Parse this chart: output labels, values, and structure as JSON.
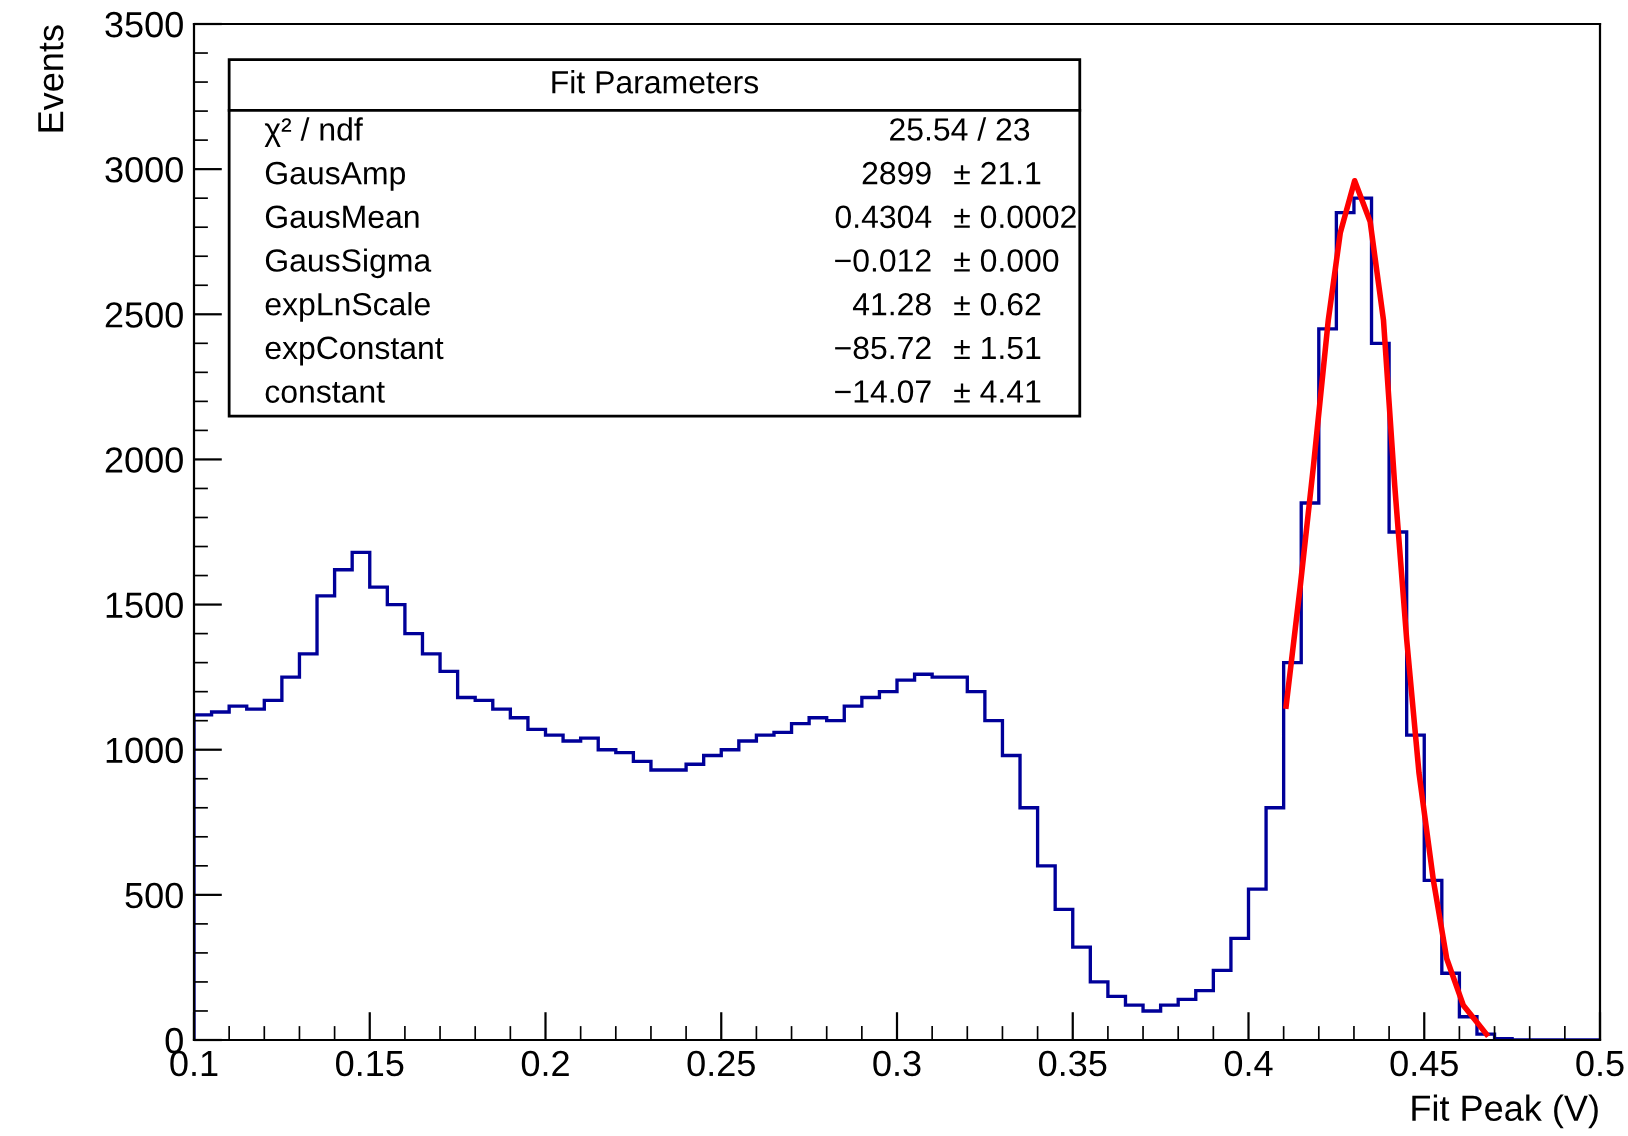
{
  "chart_data": {
    "type": "histogram",
    "xlabel": "Fit Peak (V)",
    "ylabel": "Events",
    "xlim": [
      0.1,
      0.5
    ],
    "ylim": [
      0,
      3500
    ],
    "xticks": [
      {
        "value": 0.1,
        "label": "0.1"
      },
      {
        "value": 0.15,
        "label": "0.15"
      },
      {
        "value": 0.2,
        "label": "0.2"
      },
      {
        "value": 0.25,
        "label": "0.25"
      },
      {
        "value": 0.3,
        "label": "0.3"
      },
      {
        "value": 0.35,
        "label": "0.35"
      },
      {
        "value": 0.4,
        "label": "0.4"
      },
      {
        "value": 0.45,
        "label": "0.45"
      },
      {
        "value": 0.5,
        "label": "0.5"
      }
    ],
    "yticks": [
      0,
      500,
      1000,
      1500,
      2000,
      2500,
      3000,
      3500
    ],
    "grid": false,
    "legend": false,
    "series": [
      {
        "color": "#000099",
        "bins": [
          0.1,
          0.105,
          0.11,
          0.115,
          0.12,
          0.125,
          0.13,
          0.135,
          0.14,
          0.145,
          0.15,
          0.155,
          0.16,
          0.165,
          0.17,
          0.175,
          0.18,
          0.185,
          0.19,
          0.195,
          0.2,
          0.205,
          0.21,
          0.215,
          0.22,
          0.225,
          0.23,
          0.235,
          0.24,
          0.245,
          0.25,
          0.255,
          0.26,
          0.265,
          0.27,
          0.275,
          0.28,
          0.285,
          0.29,
          0.295,
          0.3,
          0.305,
          0.31,
          0.315,
          0.32,
          0.325,
          0.33,
          0.335,
          0.34,
          0.345,
          0.35,
          0.355,
          0.36,
          0.365,
          0.37,
          0.375,
          0.38,
          0.385,
          0.39,
          0.395,
          0.4,
          0.405,
          0.41,
          0.415,
          0.42,
          0.425,
          0.43,
          0.435,
          0.44,
          0.445,
          0.45,
          0.455,
          0.46,
          0.465,
          0.47,
          0.475,
          0.48,
          0.485,
          0.49,
          0.495,
          0.5
        ],
        "values": [
          1120,
          1130,
          1150,
          1140,
          1170,
          1250,
          1330,
          1530,
          1620,
          1680,
          1560,
          1500,
          1400,
          1330,
          1270,
          1180,
          1170,
          1140,
          1110,
          1070,
          1050,
          1030,
          1040,
          1000,
          990,
          960,
          930,
          930,
          950,
          980,
          1000,
          1030,
          1050,
          1060,
          1090,
          1110,
          1100,
          1150,
          1180,
          1200,
          1240,
          1260,
          1250,
          1250,
          1200,
          1100,
          980,
          800,
          600,
          450,
          320,
          200,
          150,
          120,
          100,
          120,
          140,
          170,
          240,
          350,
          520,
          800,
          1300,
          1850,
          2450,
          2850,
          2900,
          2400,
          1750,
          1050,
          550,
          230,
          80,
          20,
          5,
          0,
          0,
          0,
          0,
          0
        ]
      },
      {
        "type": "line",
        "color": "#ff0000",
        "x": [
          0.4107,
          0.4147,
          0.4185,
          0.4227,
          0.4261,
          0.4302,
          0.4346,
          0.4384,
          0.4416,
          0.445,
          0.4485,
          0.4526,
          0.4564,
          0.4611,
          0.4677
        ],
        "values": [
          1150,
          1560,
          1980,
          2480,
          2780,
          2960,
          2820,
          2480,
          1910,
          1380,
          920,
          550,
          280,
          120,
          20
        ]
      }
    ],
    "annotations": [
      "Fit Parameters",
      "χ² / ndf",
      "25.54 / 23",
      "GausAmp",
      "2899",
      "± 21.1",
      "GausMean",
      "0.4304",
      "± 0.0002",
      "GausSigma",
      "−0.012",
      "± 0.000",
      "expLnScale",
      "41.28",
      "± 0.62",
      "expConstant",
      "−85.72",
      "± 1.51",
      "constant",
      "−14.07",
      "± 4.41"
    ]
  }
}
